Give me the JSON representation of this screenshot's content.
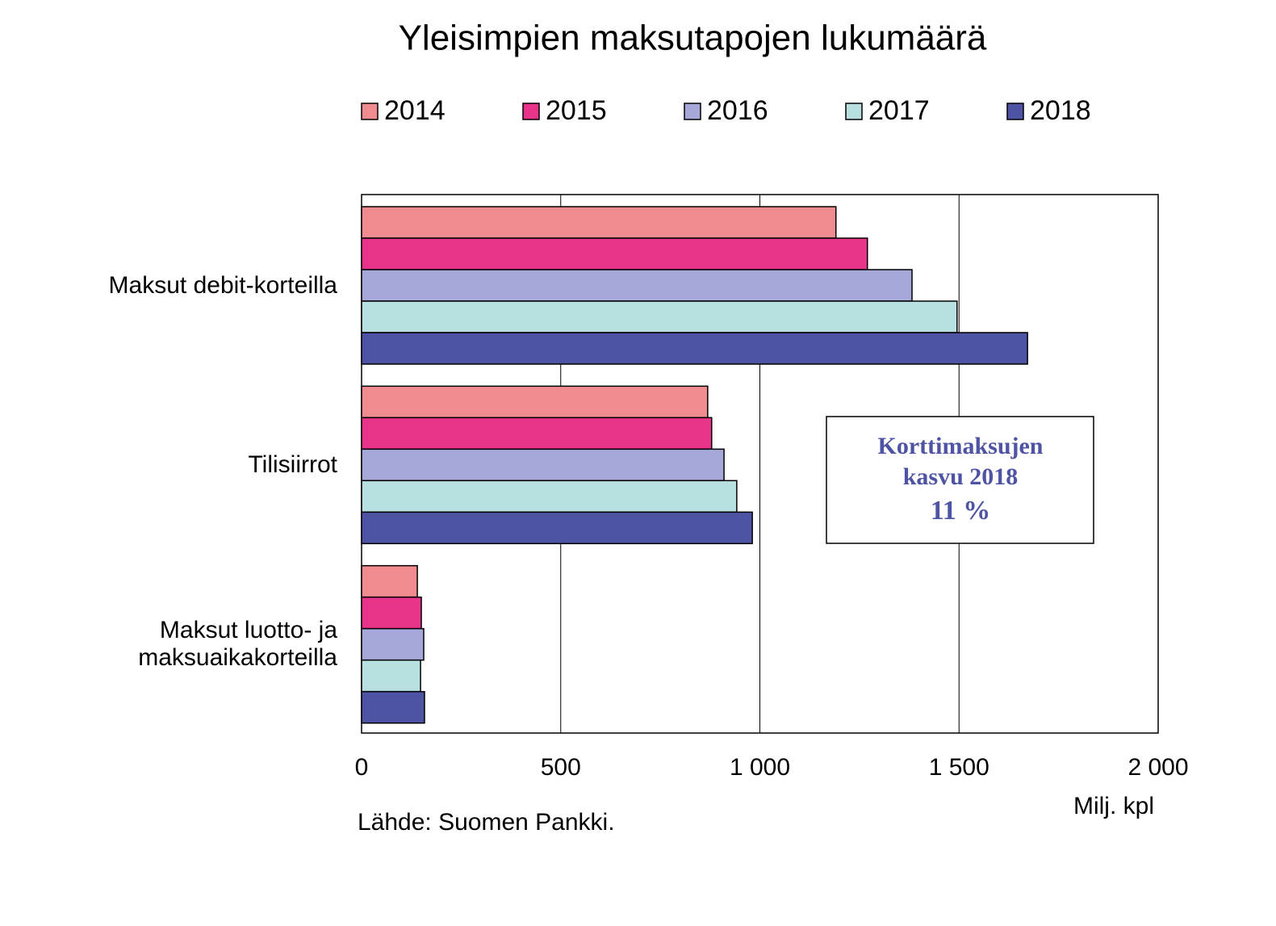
{
  "chart_data": {
    "type": "hbar",
    "title": "Yleisimpien maksutapojen lukumäärä",
    "categories": [
      "Maksut debit-korteilla",
      "Tilisiirrot",
      "Maksut luotto- ja maksuaikakorteilla"
    ],
    "series": [
      {
        "name": "2014",
        "color": "#f08c8f",
        "values": [
          1191,
          869,
          140
        ]
      },
      {
        "name": "2015",
        "color": "#e8338a",
        "values": [
          1270,
          879,
          150
        ]
      },
      {
        "name": "2016",
        "color": "#a5a8d8",
        "values": [
          1382,
          910,
          156
        ]
      },
      {
        "name": "2017",
        "color": "#b8e0e0",
        "values": [
          1495,
          942,
          148
        ]
      },
      {
        "name": "2018",
        "color": "#4e53a3",
        "values": [
          1672,
          981,
          158
        ]
      }
    ],
    "xlim": [
      0,
      2000
    ],
    "xticks": [
      0,
      500,
      {
        "value": 1000,
        "label": "1 000"
      },
      {
        "value": 1500,
        "label": "1 500"
      },
      {
        "value": 2000,
        "label": "2 000"
      }
    ],
    "grid": true,
    "x_label": "Milj. kpl",
    "source": "Lähde: Suomen Pankki.",
    "annotation": [
      "Korttimaksujen",
      "kasvu 2018",
      "11 %"
    ]
  }
}
